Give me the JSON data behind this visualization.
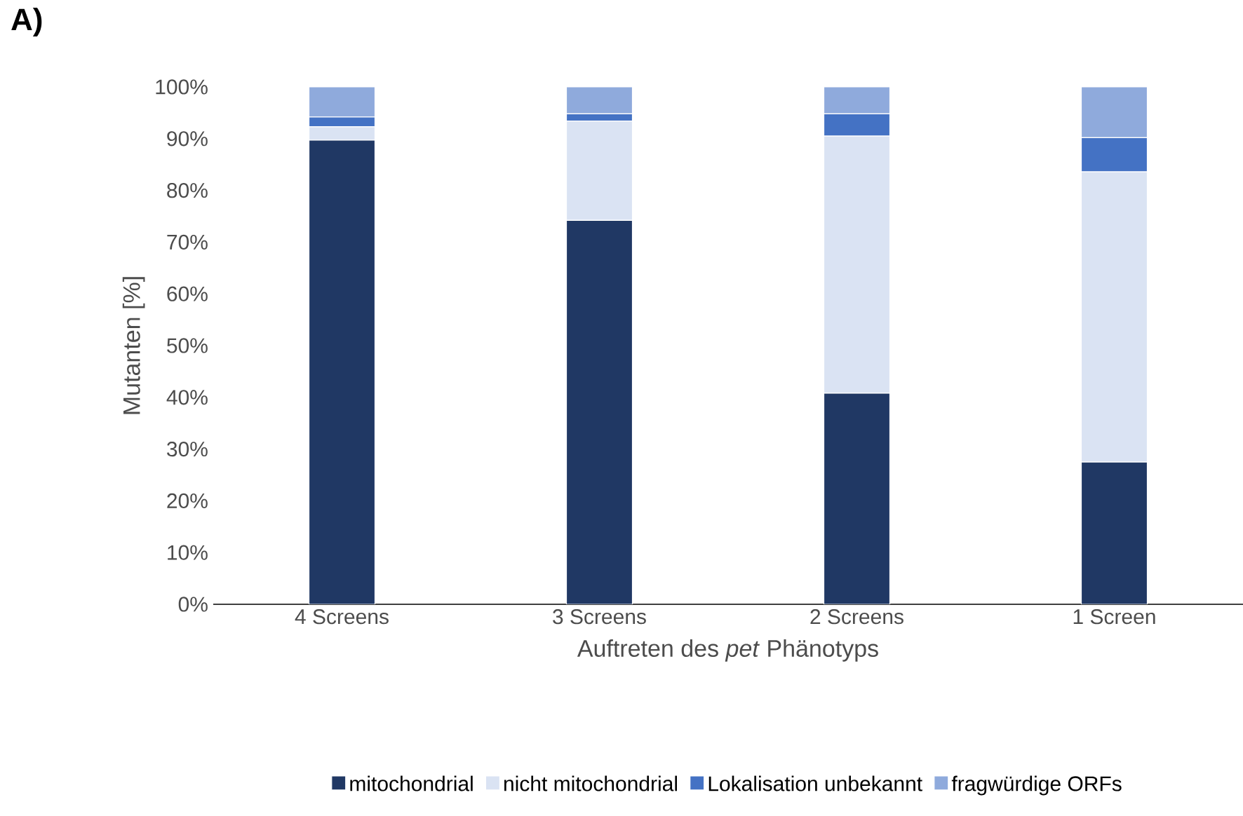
{
  "chart_data": {
    "type": "bar",
    "stacked": true,
    "title": "**A)**",
    "xlabel": "Auftreten des *pet* Phänotyps",
    "ylabel": "Mutanten [%]",
    "categories": [
      "4 Screens",
      "3 Screens",
      "2 Screens",
      "1 Screen"
    ],
    "series": [
      {
        "name": "mitochondrial",
        "color": "#203864",
        "values": [
          89.7,
          74.2,
          40.8,
          27.5
        ]
      },
      {
        "name": "nicht mitochondrial",
        "color": "#dae3f3",
        "values": [
          2.6,
          19.2,
          49.7,
          56.1
        ]
      },
      {
        "name": "Lokalisation unbekannt",
        "color": "#4472c4",
        "values": [
          1.9,
          1.4,
          4.3,
          6.6
        ]
      },
      {
        "name": "fragwürdige ORFs",
        "color": "#8faadc",
        "values": [
          5.8,
          5.2,
          5.2,
          9.8
        ]
      }
    ],
    "ylim": [
      0,
      100
    ],
    "yticks": [
      {
        "value": 0,
        "label": "0%"
      },
      {
        "value": 10,
        "label": "10%"
      },
      {
        "value": 20,
        "label": "20%"
      },
      {
        "value": 30,
        "label": "30%"
      },
      {
        "value": 40,
        "label": "40%"
      },
      {
        "value": 50,
        "label": "50%"
      },
      {
        "value": 60,
        "label": "60%"
      },
      {
        "value": 70,
        "label": "70%"
      },
      {
        "value": 80,
        "label": "80%"
      },
      {
        "value": 90,
        "label": "90%"
      },
      {
        "value": 100,
        "label": "100%"
      }
    ],
    "legend": "bottom",
    "grid": false
  }
}
